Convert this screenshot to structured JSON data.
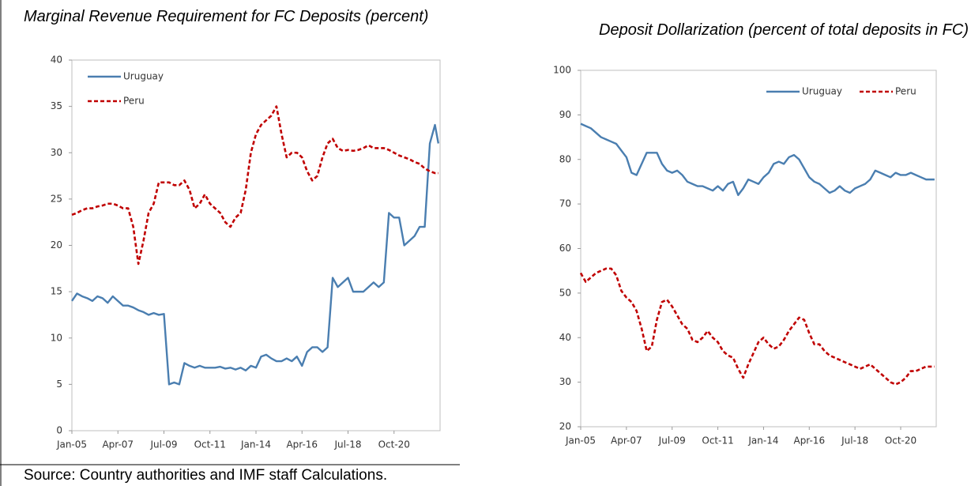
{
  "chart_data": [
    {
      "type": "line",
      "title": "Marginal Revenue Requirement for FC Deposits (percent)",
      "x": [
        "2005-01",
        "2005-04",
        "2005-07",
        "2005-10",
        "2006-01",
        "2006-04",
        "2006-07",
        "2006-10",
        "2007-01",
        "2007-04",
        "2007-07",
        "2007-10",
        "2008-01",
        "2008-04",
        "2008-07",
        "2008-10",
        "2009-01",
        "2009-04",
        "2009-07",
        "2009-10",
        "2010-01",
        "2010-04",
        "2010-07",
        "2010-10",
        "2011-01",
        "2011-04",
        "2011-07",
        "2011-10",
        "2012-01",
        "2012-04",
        "2012-07",
        "2012-10",
        "2013-01",
        "2013-04",
        "2013-07",
        "2013-10",
        "2014-01",
        "2014-04",
        "2014-07",
        "2014-10",
        "2015-01",
        "2015-04",
        "2015-07",
        "2015-10",
        "2016-01",
        "2016-04",
        "2016-07",
        "2016-10",
        "2017-01",
        "2017-04",
        "2017-07",
        "2017-10",
        "2018-01",
        "2018-04",
        "2018-07",
        "2018-10",
        "2019-01",
        "2019-04",
        "2019-07",
        "2019-10",
        "2020-01",
        "2020-04",
        "2020-07",
        "2020-10",
        "2021-01",
        "2021-04",
        "2021-07",
        "2021-10",
        "2022-01",
        "2022-04",
        "2022-07",
        "2022-10",
        "2022-12"
      ],
      "series": [
        {
          "name": "Uruguay",
          "color": "#4a7eb0",
          "style": "solid",
          "values": [
            14,
            14.8,
            14.5,
            14.3,
            14,
            14.5,
            14.3,
            13.8,
            14.5,
            14,
            13.5,
            13.5,
            13.3,
            13,
            12.8,
            12.5,
            12.7,
            12.5,
            12.6,
            5,
            5.2,
            5,
            7.3,
            7,
            6.8,
            7,
            6.8,
            6.8,
            6.8,
            6.9,
            6.7,
            6.8,
            6.6,
            6.8,
            6.5,
            7,
            6.8,
            8,
            8.2,
            7.8,
            7.5,
            7.5,
            7.8,
            7.5,
            8,
            7,
            8.5,
            9,
            9,
            8.5,
            9,
            16.5,
            15.5,
            16,
            16.5,
            15,
            15,
            15,
            15.5,
            16,
            15.5,
            16,
            23.5,
            23,
            23,
            20,
            20.5,
            21,
            22,
            22,
            31,
            33,
            31
          ]
        },
        {
          "name": "Peru",
          "color": "#c00000",
          "style": "dashed",
          "values": [
            23.3,
            23.5,
            23.8,
            24,
            24,
            24.2,
            24.3,
            24.5,
            24.5,
            24.3,
            24,
            24,
            22,
            18,
            20.5,
            23.5,
            24.5,
            26.8,
            26.8,
            26.8,
            26.5,
            26.5,
            27,
            26,
            24,
            24.5,
            25.5,
            24.5,
            24,
            23.5,
            22.5,
            22,
            23,
            23.5,
            26,
            30,
            32,
            33,
            33.5,
            34,
            35,
            32,
            29.5,
            30,
            30,
            29.5,
            28,
            27,
            27.5,
            29.5,
            31,
            31.5,
            30.5,
            30.2,
            30.3,
            30.2,
            30.3,
            30.5,
            30.8,
            30.5,
            30.5,
            30.5,
            30.3,
            30,
            29.7,
            29.5,
            29.3,
            29,
            28.8,
            28.3,
            28,
            27.8,
            27.8
          ]
        }
      ],
      "xlim": [
        "2005-01",
        "2023-01"
      ],
      "xticks": [
        {
          "value": "2005-01",
          "label": "Jan-05"
        },
        {
          "value": "2007-04",
          "label": "Apr-07"
        },
        {
          "value": "2009-07",
          "label": "Jul-09"
        },
        {
          "value": "2011-10",
          "label": "Oct-11"
        },
        {
          "value": "2014-01",
          "label": "Jan-14"
        },
        {
          "value": "2016-04",
          "label": "Apr-16"
        },
        {
          "value": "2018-07",
          "label": "Jul-18"
        },
        {
          "value": "2020-10",
          "label": "Oct-20"
        }
      ],
      "ylim": [
        0,
        40
      ],
      "yticks": [
        0,
        5,
        10,
        15,
        20,
        25,
        30,
        35,
        40
      ],
      "grid": false,
      "legend": "upper left",
      "legend_orientation": "vertical"
    },
    {
      "type": "line",
      "title": "Deposit Dollarization (percent of total deposits in FC)",
      "x": [
        "2005-01",
        "2005-04",
        "2005-07",
        "2005-10",
        "2006-01",
        "2006-04",
        "2006-07",
        "2006-10",
        "2007-01",
        "2007-04",
        "2007-07",
        "2007-10",
        "2008-01",
        "2008-04",
        "2008-07",
        "2008-10",
        "2009-01",
        "2009-04",
        "2009-07",
        "2009-10",
        "2010-01",
        "2010-04",
        "2010-07",
        "2010-10",
        "2011-01",
        "2011-04",
        "2011-07",
        "2011-10",
        "2012-01",
        "2012-04",
        "2012-07",
        "2012-10",
        "2013-01",
        "2013-04",
        "2013-07",
        "2013-10",
        "2014-01",
        "2014-04",
        "2014-07",
        "2014-10",
        "2015-01",
        "2015-04",
        "2015-07",
        "2015-10",
        "2016-01",
        "2016-04",
        "2016-07",
        "2016-10",
        "2017-01",
        "2017-04",
        "2017-07",
        "2017-10",
        "2018-01",
        "2018-04",
        "2018-07",
        "2018-10",
        "2019-01",
        "2019-04",
        "2019-07",
        "2019-10",
        "2020-01",
        "2020-04",
        "2020-07",
        "2020-10",
        "2021-01",
        "2021-04",
        "2021-07",
        "2021-10",
        "2022-01",
        "2022-04",
        "2022-06"
      ],
      "series": [
        {
          "name": "Uruguay",
          "color": "#4a7eb0",
          "style": "solid",
          "values": [
            88,
            87.5,
            87,
            86,
            85,
            84.5,
            84,
            83.5,
            82,
            80.5,
            77,
            76.5,
            79,
            81.5,
            81.5,
            81.5,
            79,
            77.5,
            77,
            77.5,
            76.5,
            75,
            74.5,
            74,
            74,
            73.5,
            73,
            74,
            73,
            74.5,
            75,
            72,
            73.5,
            75.5,
            75,
            74.5,
            76,
            77,
            79,
            79.5,
            79,
            80.5,
            81,
            80,
            78,
            76,
            75,
            74.5,
            73.5,
            72.5,
            73,
            74,
            73,
            72.5,
            73.5,
            74,
            74.5,
            75.5,
            77.5,
            77,
            76.5,
            76,
            77,
            76.5,
            76.5,
            77,
            76.5,
            76,
            75.5,
            75.5,
            75.5
          ]
        },
        {
          "name": "Peru",
          "color": "#c00000",
          "style": "dashed",
          "values": [
            54.5,
            52.5,
            53.5,
            54.5,
            55,
            55.5,
            55.5,
            54,
            50.5,
            49,
            48,
            46,
            42,
            37,
            38,
            44,
            48,
            48.5,
            47,
            45,
            43,
            42,
            39.5,
            39,
            40,
            41.5,
            40,
            39,
            37,
            36,
            35.5,
            33,
            31,
            34,
            36.5,
            39,
            40,
            38.5,
            37.5,
            38,
            39.5,
            41.5,
            43,
            44.5,
            44,
            41,
            38.5,
            38.5,
            37,
            36,
            35.5,
            35,
            34.5,
            34,
            33.5,
            33,
            33.5,
            34,
            33,
            32,
            31,
            30,
            29.5,
            30,
            31,
            32.5,
            32.5,
            33,
            33.5,
            33.5,
            33.5
          ]
        }
      ],
      "xlim": [
        "2005-01",
        "2022-07"
      ],
      "xticks": [
        {
          "value": "2005-01",
          "label": "Jan-05"
        },
        {
          "value": "2007-04",
          "label": "Apr-07"
        },
        {
          "value": "2009-07",
          "label": "Jul-09"
        },
        {
          "value": "2011-10",
          "label": "Oct-11"
        },
        {
          "value": "2014-01",
          "label": "Jan-14"
        },
        {
          "value": "2016-04",
          "label": "Apr-16"
        },
        {
          "value": "2018-07",
          "label": "Jul-18"
        },
        {
          "value": "2020-10",
          "label": "Oct-20"
        }
      ],
      "ylim": [
        20,
        100
      ],
      "yticks": [
        20,
        30,
        40,
        50,
        60,
        70,
        80,
        90,
        100
      ],
      "grid": false,
      "legend": "upper right",
      "legend_orientation": "horizontal"
    }
  ],
  "source": "Source: Country authorities and IMF staff Calculations."
}
